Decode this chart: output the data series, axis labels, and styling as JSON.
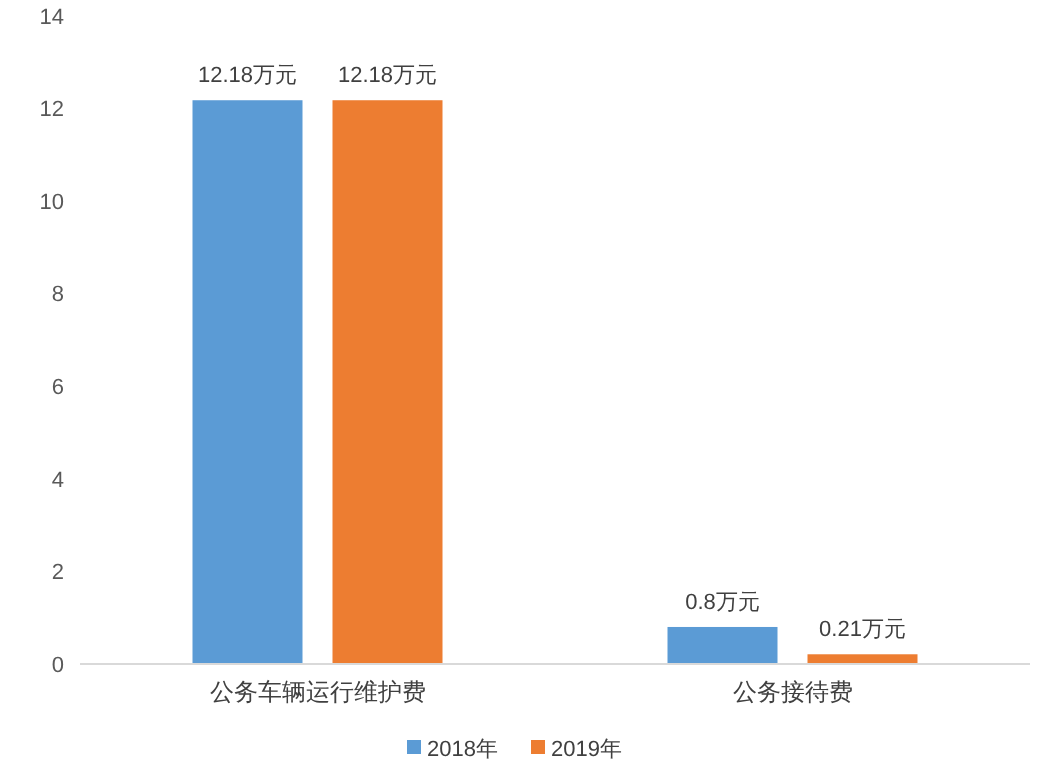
{
  "chart_data": {
    "type": "bar",
    "categories": [
      "公务车辆运行维护费",
      "公务接待费"
    ],
    "series": [
      {
        "name": "2018年",
        "color": "#5b9bd5",
        "values": [
          12.18,
          0.8
        ],
        "value_labels": [
          "12.18万元",
          "0.8万元"
        ]
      },
      {
        "name": "2019年",
        "color": "#ed7d31",
        "values": [
          12.18,
          0.21
        ],
        "value_labels": [
          "12.18万元",
          "0.21万元"
        ]
      }
    ],
    "ylim": [
      0,
      14
    ],
    "yticks": [
      0,
      2,
      4,
      6,
      8,
      10,
      12,
      14
    ],
    "grid": false,
    "legend": "bottom"
  }
}
